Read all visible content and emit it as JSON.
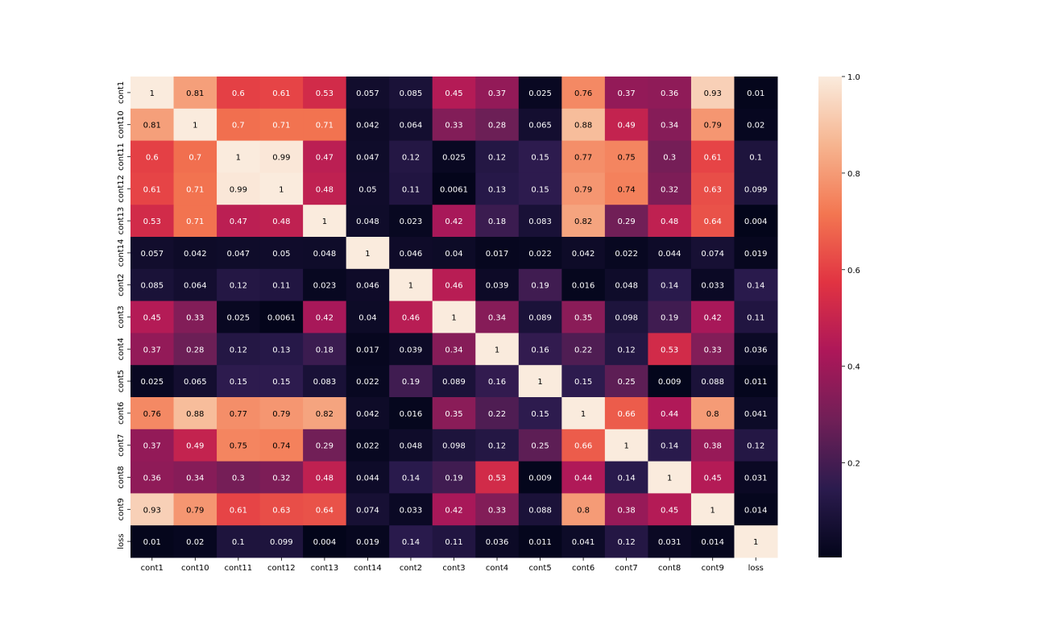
{
  "chart_data": {
    "type": "heatmap",
    "title": "",
    "xlabel": "",
    "ylabel": "",
    "x_labels": [
      "cont1",
      "cont10",
      "cont11",
      "cont12",
      "cont13",
      "cont14",
      "cont2",
      "cont3",
      "cont4",
      "cont5",
      "cont6",
      "cont7",
      "cont8",
      "cont9",
      "loss"
    ],
    "y_labels": [
      "cont1",
      "cont10",
      "cont11",
      "cont12",
      "cont13",
      "cont14",
      "cont2",
      "cont3",
      "cont4",
      "cont5",
      "cont6",
      "cont7",
      "cont8",
      "cont9",
      "loss"
    ],
    "matrix": [
      [
        1,
        0.81,
        0.6,
        0.61,
        0.53,
        0.057,
        0.085,
        0.45,
        0.37,
        0.025,
        0.76,
        0.37,
        0.36,
        0.93,
        0.01
      ],
      [
        0.81,
        1,
        0.7,
        0.71,
        0.71,
        0.042,
        0.064,
        0.33,
        0.28,
        0.065,
        0.88,
        0.49,
        0.34,
        0.79,
        0.02
      ],
      [
        0.6,
        0.7,
        1,
        0.99,
        0.47,
        0.047,
        0.12,
        0.025,
        0.12,
        0.15,
        0.77,
        0.75,
        0.3,
        0.61,
        0.1
      ],
      [
        0.61,
        0.71,
        0.99,
        1,
        0.48,
        0.05,
        0.11,
        0.0061,
        0.13,
        0.15,
        0.79,
        0.74,
        0.32,
        0.63,
        0.099
      ],
      [
        0.53,
        0.71,
        0.47,
        0.48,
        1,
        0.048,
        0.023,
        0.42,
        0.18,
        0.083,
        0.82,
        0.29,
        0.48,
        0.64,
        0.004
      ],
      [
        0.057,
        0.042,
        0.047,
        0.05,
        0.048,
        1,
        0.046,
        0.04,
        0.017,
        0.022,
        0.042,
        0.022,
        0.044,
        0.074,
        0.019
      ],
      [
        0.085,
        0.064,
        0.12,
        0.11,
        0.023,
        0.046,
        1,
        0.46,
        0.039,
        0.19,
        0.016,
        0.048,
        0.14,
        0.033,
        0.14
      ],
      [
        0.45,
        0.33,
        0.025,
        0.0061,
        0.42,
        0.04,
        0.46,
        1,
        0.34,
        0.089,
        0.35,
        0.098,
        0.19,
        0.42,
        0.11
      ],
      [
        0.37,
        0.28,
        0.12,
        0.13,
        0.18,
        0.017,
        0.039,
        0.34,
        1,
        0.16,
        0.22,
        0.12,
        0.53,
        0.33,
        0.036
      ],
      [
        0.025,
        0.065,
        0.15,
        0.15,
        0.083,
        0.022,
        0.19,
        0.089,
        0.16,
        1,
        0.15,
        0.25,
        0.009,
        0.088,
        0.011
      ],
      [
        0.76,
        0.88,
        0.77,
        0.79,
        0.82,
        0.042,
        0.016,
        0.35,
        0.22,
        0.15,
        1,
        0.66,
        0.44,
        0.8,
        0.041
      ],
      [
        0.37,
        0.49,
        0.75,
        0.74,
        0.29,
        0.022,
        0.048,
        0.098,
        0.12,
        0.25,
        0.66,
        1,
        0.14,
        0.38,
        0.12
      ],
      [
        0.36,
        0.34,
        0.3,
        0.32,
        0.48,
        0.044,
        0.14,
        0.19,
        0.53,
        0.009,
        0.44,
        0.14,
        1,
        0.45,
        0.031
      ],
      [
        0.93,
        0.79,
        0.61,
        0.63,
        0.64,
        0.074,
        0.033,
        0.42,
        0.33,
        0.088,
        0.8,
        0.38,
        0.45,
        1,
        0.014
      ],
      [
        0.01,
        0.02,
        0.1,
        0.099,
        0.004,
        0.019,
        0.14,
        0.11,
        0.036,
        0.011,
        0.041,
        0.12,
        0.031,
        0.014,
        1
      ]
    ],
    "colorbar": {
      "vmin": 0.004,
      "vmax": 1.0,
      "ticks": [
        1.0,
        0.8,
        0.6,
        0.4,
        0.2
      ],
      "tick_labels": [
        "1.0",
        "0.8",
        "0.6",
        "0.4",
        "0.2"
      ],
      "colormap": "rocket",
      "stops": [
        "#03051a",
        "#2b1b4e",
        "#701f57",
        "#ad1759",
        "#e13342",
        "#f37651",
        "#f6b48f",
        "#faebdd"
      ]
    },
    "annotations": true,
    "grid": false,
    "legend": "colorbar-right"
  }
}
